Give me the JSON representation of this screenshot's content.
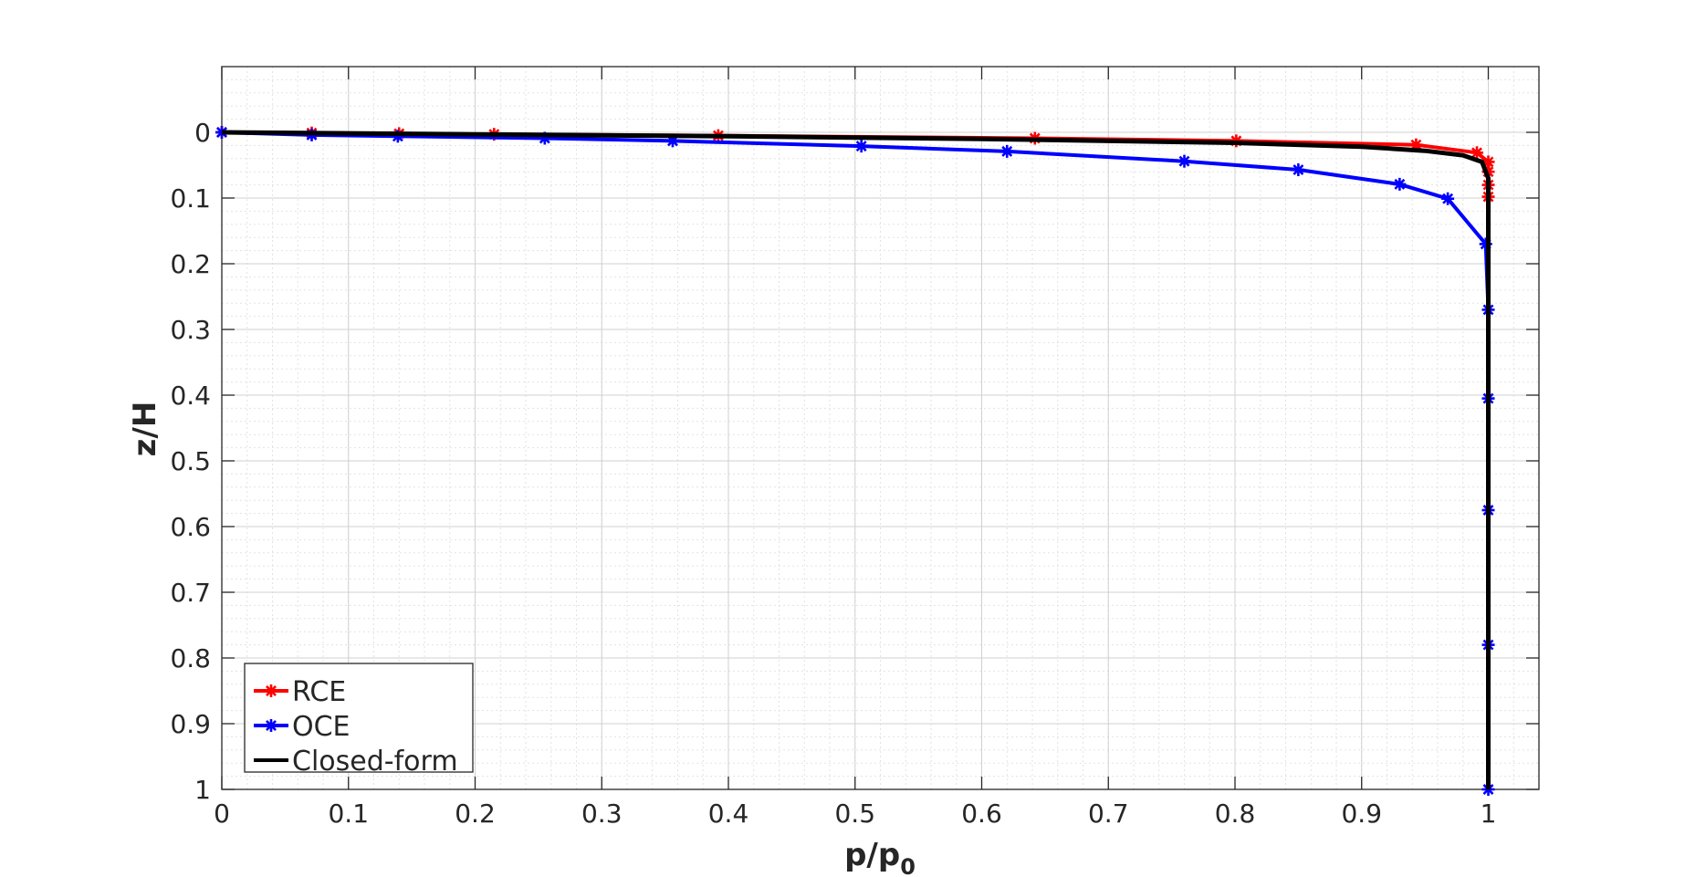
{
  "chart_data": {
    "type": "line",
    "xlabel": "p/p",
    "xlabel_subscript": "0",
    "ylabel": "z/H",
    "xlim": [
      0,
      1.04
    ],
    "ylim": [
      -0.1,
      1.0
    ],
    "y_reversed": true,
    "grid": "major and minor",
    "x_ticks": [
      0,
      0.1,
      0.2,
      0.3,
      0.4,
      0.5,
      0.6,
      0.7,
      0.8,
      0.9,
      1
    ],
    "x_tick_labels": [
      "0",
      "0.1",
      "0.2",
      "0.3",
      "0.4",
      "0.5",
      "0.6",
      "0.7",
      "0.8",
      "0.9",
      "1"
    ],
    "y_ticks": [
      0,
      0.1,
      0.2,
      0.3,
      0.4,
      0.5,
      0.6,
      0.7,
      0.8,
      0.9,
      1
    ],
    "y_tick_labels": [
      "0",
      "0.1",
      "0.2",
      "0.3",
      "0.4",
      "0.5",
      "0.6",
      "0.7",
      "0.8",
      "0.9",
      "1"
    ],
    "legend_position": "bottom-left",
    "series": [
      {
        "name": "RCE",
        "color": "#ff0000",
        "marker": "asterisk",
        "x": [
          0,
          0.071,
          0.14,
          0.215,
          0.392,
          0.642,
          0.801,
          0.943,
          0.991,
          1.0,
          1.0,
          1.0,
          1.0
        ],
        "y": [
          0,
          0.001,
          0.002,
          0.003,
          0.005,
          0.009,
          0.013,
          0.019,
          0.031,
          0.045,
          0.06,
          0.08,
          0.098
        ]
      },
      {
        "name": "OCE",
        "color": "#0000ff",
        "marker": "asterisk",
        "x": [
          0,
          0.071,
          0.139,
          0.255,
          0.356,
          0.505,
          0.62,
          0.76,
          0.85,
          0.93,
          0.968,
          0.998,
          1.0,
          1.0,
          1.0,
          1.0,
          1.0
        ],
        "y": [
          0,
          0.004,
          0.006,
          0.009,
          0.013,
          0.021,
          0.029,
          0.044,
          0.057,
          0.079,
          0.101,
          0.17,
          0.27,
          0.405,
          0.575,
          0.78,
          1.0
        ]
      },
      {
        "name": "Closed-form",
        "color": "#000000",
        "marker": "none",
        "x": [
          0,
          0.2,
          0.4,
          0.6,
          0.8,
          0.9,
          0.95,
          0.98,
          0.995,
          1.0,
          1.0
        ],
        "y": [
          0,
          0.003,
          0.006,
          0.01,
          0.016,
          0.022,
          0.028,
          0.035,
          0.045,
          0.07,
          1.0
        ]
      }
    ]
  }
}
